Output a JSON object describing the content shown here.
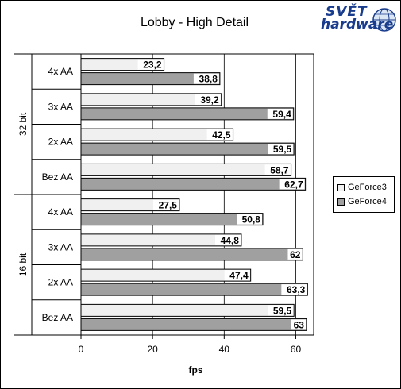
{
  "chart_data": {
    "type": "bar",
    "orientation": "horizontal",
    "title": "Lobby - High Detail",
    "xlabel": "fps",
    "xlim": [
      0,
      65
    ],
    "xticks": [
      0,
      20,
      40,
      60
    ],
    "grid": true,
    "legend_position": "right",
    "groups": [
      {
        "label": "32 bit",
        "categories": [
          "4x AA",
          "3x AA",
          "2x AA",
          "Bez AA"
        ]
      },
      {
        "label": "16 bit",
        "categories": [
          "4x AA",
          "3x AA",
          "2x AA",
          "Bez AA"
        ]
      }
    ],
    "categories": [
      "4x AA",
      "3x AA",
      "2x AA",
      "Bez AA",
      "4x AA",
      "3x AA",
      "2x AA",
      "Bez AA"
    ],
    "series": [
      {
        "name": "GeForce3",
        "color": "#f0f0f0",
        "values": [
          23.2,
          39.2,
          42.5,
          58.7,
          27.5,
          44.8,
          47.4,
          59.5
        ],
        "labels": [
          "23,2",
          "39,2",
          "42,5",
          "58,7",
          "27,5",
          "44,8",
          "47,4",
          "59,5"
        ]
      },
      {
        "name": "GeForce4",
        "color": "#a0a0a0",
        "values": [
          38.8,
          59.4,
          59.5,
          62.7,
          50.8,
          62,
          63.3,
          63
        ],
        "labels": [
          "38,8",
          "59,4",
          "59,5",
          "62,7",
          "50,8",
          "62",
          "63,3",
          "63"
        ]
      }
    ]
  },
  "logo": {
    "line1": "SVĚT",
    "line2": "hardware"
  }
}
